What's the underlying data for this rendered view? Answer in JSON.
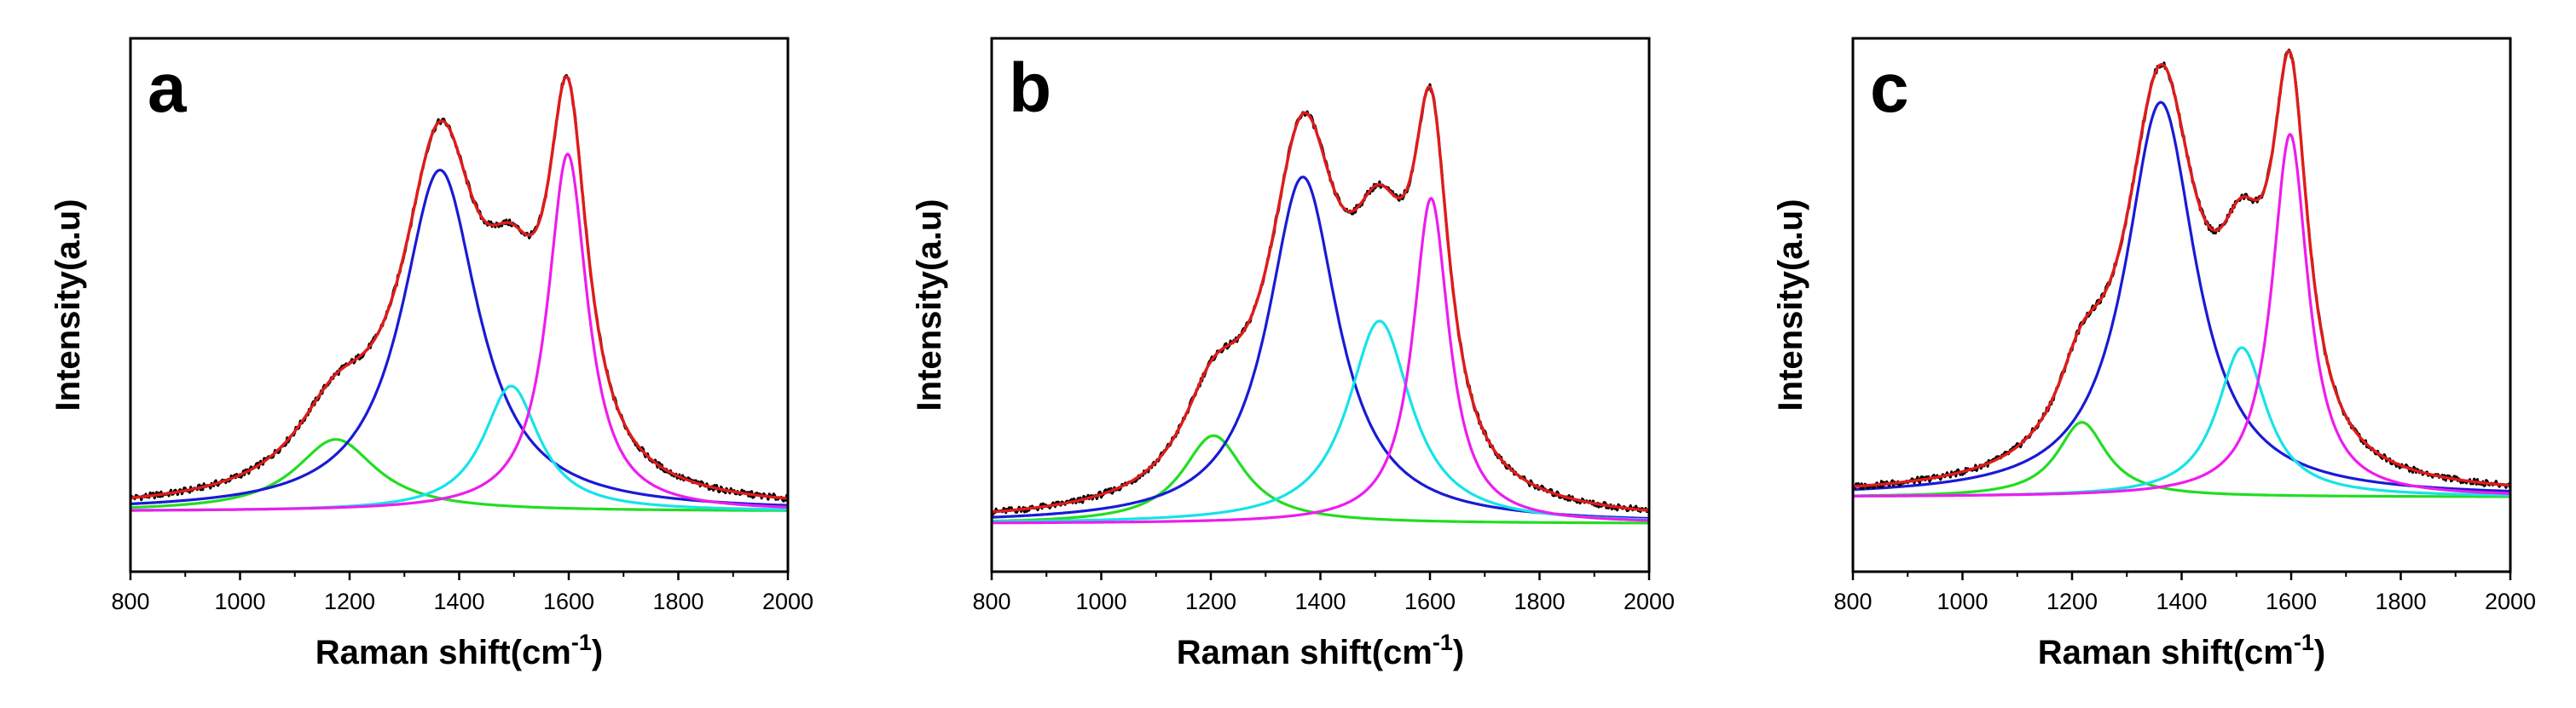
{
  "chart_data": [
    {
      "type": "line",
      "panel_label": "a",
      "xlabel": "Raman shift(cm",
      "xlabel_sup": "-1",
      "xlabel_end": ")",
      "ylabel": "Intensity(a.u)",
      "xlim": [
        800,
        2000
      ],
      "ylim": [
        0,
        1
      ],
      "x_ticks": [
        800,
        1000,
        1200,
        1400,
        1600,
        1800,
        2000
      ],
      "y_ticks_shown": false,
      "baseline": 0.113,
      "peaks": [
        {
          "name": "green",
          "color": "#22dd22",
          "center": 1175,
          "height": 0.135,
          "width": 90
        },
        {
          "name": "blue",
          "color": "#1a1ad6",
          "center": 1365,
          "height": 0.64,
          "width": 85
        },
        {
          "name": "cyan",
          "color": "#15e3e8",
          "center": 1495,
          "height": 0.235,
          "width": 62
        },
        {
          "name": "magenta",
          "color": "#ee1cee",
          "center": 1598,
          "height": 0.67,
          "width": 44
        }
      ],
      "envelope_color": "#e01b1b",
      "measured_color": "#000000"
    },
    {
      "type": "line",
      "panel_label": "b",
      "xlabel": "Raman shift(cm",
      "xlabel_sup": "-1",
      "xlabel_end": ")",
      "ylabel": "Intensity(a.u)",
      "xlim": [
        800,
        2000
      ],
      "ylim": [
        0,
        1
      ],
      "x_ticks": [
        800,
        1000,
        1200,
        1400,
        1600,
        1800,
        2000
      ],
      "y_ticks_shown": false,
      "baseline": 0.09,
      "peaks": [
        {
          "name": "green",
          "color": "#22dd22",
          "center": 1205,
          "height": 0.165,
          "width": 70
        },
        {
          "name": "blue",
          "color": "#1a1ad6",
          "center": 1368,
          "height": 0.65,
          "width": 78
        },
        {
          "name": "cyan",
          "color": "#15e3e8",
          "center": 1508,
          "height": 0.38,
          "width": 70
        },
        {
          "name": "magenta",
          "color": "#ee1cee",
          "center": 1602,
          "height": 0.61,
          "width": 40
        }
      ],
      "envelope_color": "#e01b1b",
      "measured_color": "#000000"
    },
    {
      "type": "line",
      "panel_label": "c",
      "xlabel": "Raman shift(cm",
      "xlabel_sup": "-1",
      "xlabel_end": ")",
      "ylabel": "Intensity(a.u)",
      "xlim": [
        800,
        2000
      ],
      "ylim": [
        0,
        1
      ],
      "x_ticks": [
        800,
        1000,
        1200,
        1400,
        1600,
        1800,
        2000
      ],
      "y_ticks_shown": false,
      "baseline": 0.14,
      "peaks": [
        {
          "name": "green",
          "color": "#22dd22",
          "center": 1218,
          "height": 0.14,
          "width": 55
        },
        {
          "name": "blue",
          "color": "#1a1ad6",
          "center": 1362,
          "height": 0.74,
          "width": 78
        },
        {
          "name": "cyan",
          "color": "#15e3e8",
          "center": 1510,
          "height": 0.28,
          "width": 55
        },
        {
          "name": "magenta",
          "color": "#ee1cee",
          "center": 1598,
          "height": 0.68,
          "width": 40
        }
      ],
      "envelope_color": "#e01b1b",
      "measured_color": "#000000"
    }
  ]
}
